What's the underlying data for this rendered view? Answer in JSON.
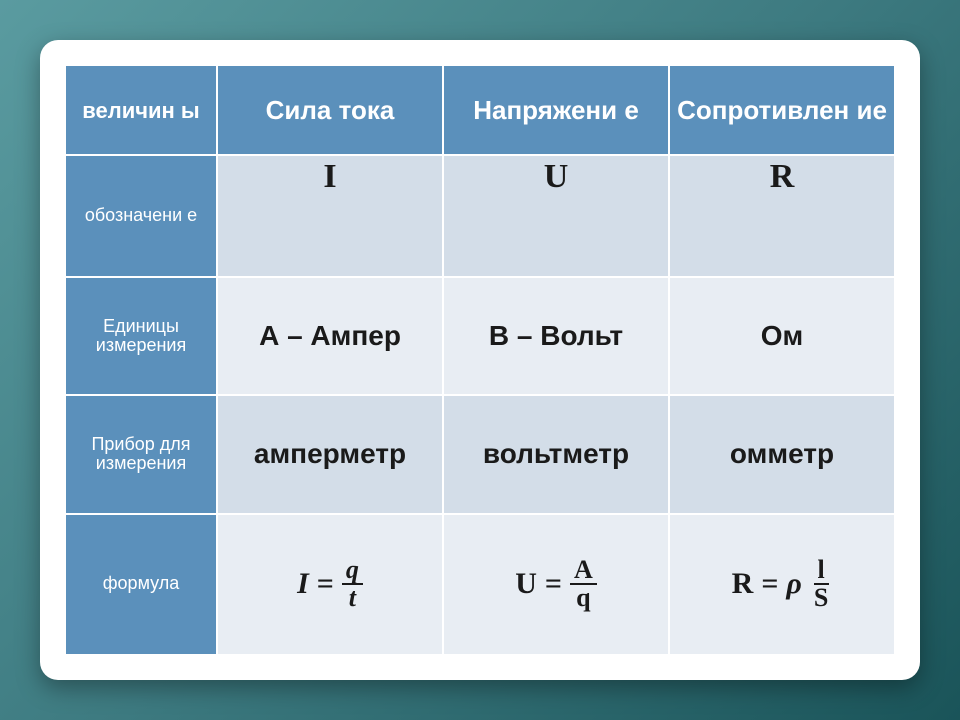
{
  "header": {
    "col0": "величин ы",
    "col1": "Сила тока",
    "col2": "Напряжени е",
    "col3": "Сопротивлен ие"
  },
  "rows": {
    "symbol": {
      "label": "обозначени е",
      "c1": "I",
      "c2": "U",
      "c3": "R"
    },
    "units": {
      "label": "Единицы измерения",
      "c1": "А – Ампер",
      "c2": "В – Вольт",
      "c3": "Ом"
    },
    "device": {
      "label": "Прибор для измерения",
      "c1": "амперметр",
      "c2": "вольтметр",
      "c3": "омметр"
    },
    "formula": {
      "label": "формула",
      "f1": {
        "lhs": "I",
        "eq": "=",
        "num": "q",
        "den": "t"
      },
      "f2": {
        "lhs": "U",
        "eq": "=",
        "num": "A",
        "den": "q"
      },
      "f3": {
        "lhs": "R",
        "eq": "=",
        "coef": "ρ",
        "num": "l",
        "den": "S"
      }
    }
  },
  "style": {
    "header_bg": "#5b90bb",
    "header_fg": "#ffffff",
    "cell_bg_a": "#d3dde8",
    "cell_bg_b": "#e8edf3",
    "cell_fg": "#1a1a1a",
    "card_bg": "#ffffff",
    "page_gradient": [
      "#5a9ba0",
      "#3d7a80",
      "#1a5459"
    ],
    "header_fontsize": 26,
    "rowlabel_fontsize": 18,
    "cell_fontsize": 28,
    "formula_fontsize": 30,
    "card_radius": 18,
    "col0_width": 150
  }
}
